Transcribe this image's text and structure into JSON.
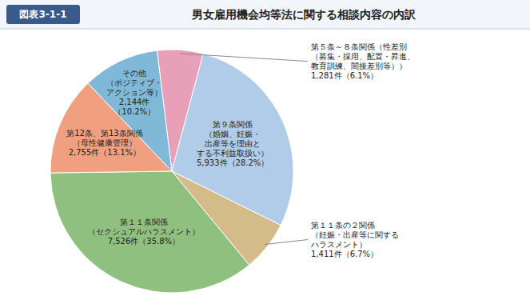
{
  "chart_data": {
    "type": "pie",
    "title": "男女雇用機会均等法に関する相談内容の内訳",
    "subtitle": "図表3-1-1",
    "categories": [
      "第５条～８条関係（性差別\n（募集・採用、配置・昇進、\n教育訓練、間接差別等））",
      "第９条関係\n（婚姻、妊娠・\n出産等を理由と\nする不利益取扱い）",
      "第１１条の２関係\n（妊娠・出産等に関する\nハラスメント）",
      "第１１条関係\n（セクシュアルハラスメント）",
      "第12条、第13条関係\n（母性健康管理）",
      "その他\n（ポジティブ・\nアクション等）"
    ],
    "values": [
      6.1,
      28.2,
      6.7,
      35.8,
      13.1,
      10.2
    ],
    "value_labels": [
      "1,281件（6.1%）",
      "5,933件（28.2%）",
      "1,411件（6.7%）",
      "7,526件（35.8%）",
      "2,755件（13.1%）",
      "2,144件\n（10.2%）"
    ],
    "colors": [
      "#e8a0b8",
      "#b0cce8",
      "#d4bc8a",
      "#90c080",
      "#f0a080",
      "#80b8d8"
    ],
    "data_labels": true
  }
}
